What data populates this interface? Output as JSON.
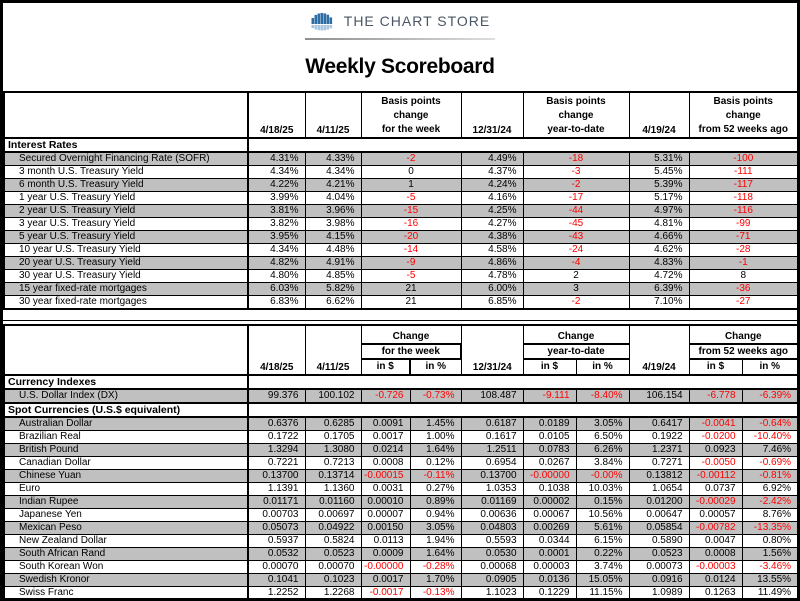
{
  "brand": {
    "name": "THE CHART STORE"
  },
  "title": "Weekly Scoreboard",
  "colors": {
    "accent_blue": "#2e6da4",
    "negative_red": "#ff0000",
    "row_shade": "#c0c0c0"
  },
  "rates": {
    "dates": [
      "4/18/25",
      "4/11/25",
      "12/31/24",
      "4/19/24"
    ],
    "change_week": [
      "Basis points",
      "change",
      "for the week"
    ],
    "change_ytd": [
      "Basis points",
      "change",
      "year-to-date"
    ],
    "change_52wk": [
      "Basis points",
      "change",
      "from 52 weeks ago"
    ],
    "section_title": "Interest Rates",
    "rows": [
      [
        "Secured Overnight Financing Rate (SOFR)",
        "4.31%",
        "4.33%",
        "-2",
        "4.49%",
        "-18",
        "5.31%",
        "-100"
      ],
      [
        "3 month U.S. Treasury Yield",
        "4.34%",
        "4.34%",
        "0",
        "4.37%",
        "-3",
        "5.45%",
        "-111"
      ],
      [
        "6 month U.S. Treasury Yield",
        "4.22%",
        "4.21%",
        "1",
        "4.24%",
        "-2",
        "5.39%",
        "-117"
      ],
      [
        "1 year U.S. Treasury Yield",
        "3.99%",
        "4.04%",
        "-5",
        "4.16%",
        "-17",
        "5.17%",
        "-118"
      ],
      [
        "2 year U.S. Treasury Yield",
        "3.81%",
        "3.96%",
        "-15",
        "4.25%",
        "-44",
        "4.97%",
        "-116"
      ],
      [
        "3 year U.S. Treasury Yield",
        "3.82%",
        "3.98%",
        "-16",
        "4.27%",
        "-45",
        "4.81%",
        "-99"
      ],
      [
        "5 year U.S. Treasury Yield",
        "3.95%",
        "4.15%",
        "-20",
        "4.38%",
        "-43",
        "4.66%",
        "-71"
      ],
      [
        "10 year U.S. Treasury Yield",
        "4.34%",
        "4.48%",
        "-14",
        "4.58%",
        "-24",
        "4.62%",
        "-28"
      ],
      [
        "20 year U.S. Treasury Yield",
        "4.82%",
        "4.91%",
        "-9",
        "4.86%",
        "-4",
        "4.83%",
        "-1"
      ],
      [
        "30 year U.S. Treasury Yield",
        "4.80%",
        "4.85%",
        "-5",
        "4.78%",
        "2",
        "4.72%",
        "8"
      ],
      [
        "15 year fixed-rate mortgages",
        "6.03%",
        "5.82%",
        "21",
        "6.00%",
        "3",
        "6.39%",
        "-36"
      ],
      [
        "30 year fixed-rate mortgages",
        "6.83%",
        "6.62%",
        "21",
        "6.85%",
        "-2",
        "7.10%",
        "-27"
      ]
    ]
  },
  "currency": {
    "dates": [
      "4/18/25",
      "4/11/25",
      "12/31/24",
      "4/19/24"
    ],
    "change_week": [
      "Change",
      "for the week"
    ],
    "change_ytd": [
      "Change",
      "year-to-date"
    ],
    "change_52wk": [
      "Change",
      "from 52 weeks ago"
    ],
    "sub": [
      "in $",
      "in %"
    ],
    "sections": [
      {
        "title": "Currency Indexes",
        "rows": [
          [
            "U.S. Dollar Index (DX)",
            "99.376",
            "100.102",
            "-0.726",
            "-0.73%",
            "108.487",
            "-9.111",
            "-8.40%",
            "106.154",
            "-6.778",
            "-6.39%"
          ]
        ]
      },
      {
        "title": "Spot Currencies (U.S.$ equivalent)",
        "rows": [
          [
            "Australian Dollar",
            "0.6376",
            "0.6285",
            "0.0091",
            "1.45%",
            "0.6187",
            "0.0189",
            "3.05%",
            "0.6417",
            "-0.0041",
            "-0.64%"
          ],
          [
            "Brazilian Real",
            "0.1722",
            "0.1705",
            "0.0017",
            "1.00%",
            "0.1617",
            "0.0105",
            "6.50%",
            "0.1922",
            "-0.0200",
            "-10.40%"
          ],
          [
            "British Pound",
            "1.3294",
            "1.3080",
            "0.0214",
            "1.64%",
            "1.2511",
            "0.0783",
            "6.26%",
            "1.2371",
            "0.0923",
            "7.46%"
          ],
          [
            "Canadian Dollar",
            "0.7221",
            "0.7213",
            "0.0008",
            "0.12%",
            "0.6954",
            "0.0267",
            "3.84%",
            "0.7271",
            "-0.0050",
            "-0.69%"
          ],
          [
            "Chinese Yuan",
            "0.13700",
            "0.13714",
            "-0.00015",
            "-0.11%",
            "0.13700",
            "-0.00000",
            "-0.00%",
            "0.13812",
            "-0.00112",
            "-0.81%"
          ],
          [
            "Euro",
            "1.1391",
            "1.1360",
            "0.0031",
            "0.27%",
            "1.0353",
            "0.1038",
            "10.03%",
            "1.0654",
            "0.0737",
            "6.92%"
          ],
          [
            "Indian Rupee",
            "0.01171",
            "0.01160",
            "0.00010",
            "0.89%",
            "0.01169",
            "0.00002",
            "0.15%",
            "0.01200",
            "-0.00029",
            "-2.42%"
          ],
          [
            "Japanese Yen",
            "0.00703",
            "0.00697",
            "0.00007",
            "0.94%",
            "0.00636",
            "0.00067",
            "10.56%",
            "0.00647",
            "0.00057",
            "8.76%"
          ],
          [
            "Mexican Peso",
            "0.05073",
            "0.04922",
            "0.00150",
            "3.05%",
            "0.04803",
            "0.00269",
            "5.61%",
            "0.05854",
            "-0.00782",
            "-13.35%"
          ],
          [
            "New Zealand Dollar",
            "0.5937",
            "0.5824",
            "0.0113",
            "1.94%",
            "0.5593",
            "0.0344",
            "6.15%",
            "0.5890",
            "0.0047",
            "0.80%"
          ],
          [
            "South African Rand",
            "0.0532",
            "0.0523",
            "0.0009",
            "1.64%",
            "0.0530",
            "0.0001",
            "0.22%",
            "0.0523",
            "0.0008",
            "1.56%"
          ],
          [
            "South Korean Won",
            "0.00070",
            "0.00070",
            "-0.00000",
            "-0.28%",
            "0.00068",
            "0.00003",
            "3.74%",
            "0.00073",
            "-0.00003",
            "-3.46%"
          ],
          [
            "Swedish Kronor",
            "0.1041",
            "0.1023",
            "0.0017",
            "1.70%",
            "0.0905",
            "0.0136",
            "15.05%",
            "0.0916",
            "0.0124",
            "13.55%"
          ],
          [
            "Swiss Franc",
            "1.2252",
            "1.2268",
            "-0.0017",
            "-0.13%",
            "1.1023",
            "0.1229",
            "11.15%",
            "1.0989",
            "0.1263",
            "11.49%"
          ]
        ]
      }
    ]
  }
}
